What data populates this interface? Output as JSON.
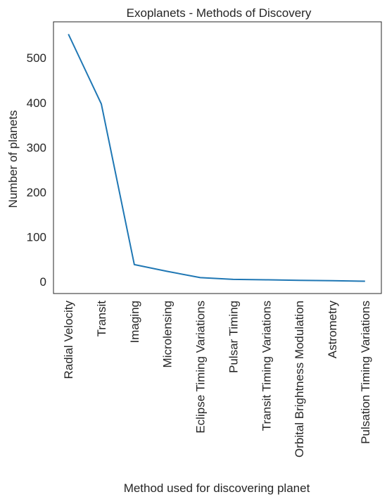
{
  "chart_data": {
    "type": "line",
    "title": "Exoplanets - Methods of Discovery",
    "xlabel": "Method used for discovering planet",
    "ylabel": "Number of planets",
    "categories": [
      "Radial Velocity",
      "Transit",
      "Imaging",
      "Microlensing",
      "Eclipse Timing Variations",
      "Pulsar Timing",
      "Transit Timing Variations",
      "Orbital Brightness Modulation",
      "Astrometry",
      "Pulsation Timing Variations"
    ],
    "series": [
      {
        "values": [
          553,
          397,
          38,
          23,
          9,
          5,
          4,
          3,
          2,
          1
        ],
        "color": "#1f77b4"
      }
    ],
    "yticks": [
      0,
      100,
      200,
      300,
      400,
      500
    ],
    "ylim": [
      -26.6,
      580.6
    ],
    "grid": false,
    "legend": "none"
  }
}
